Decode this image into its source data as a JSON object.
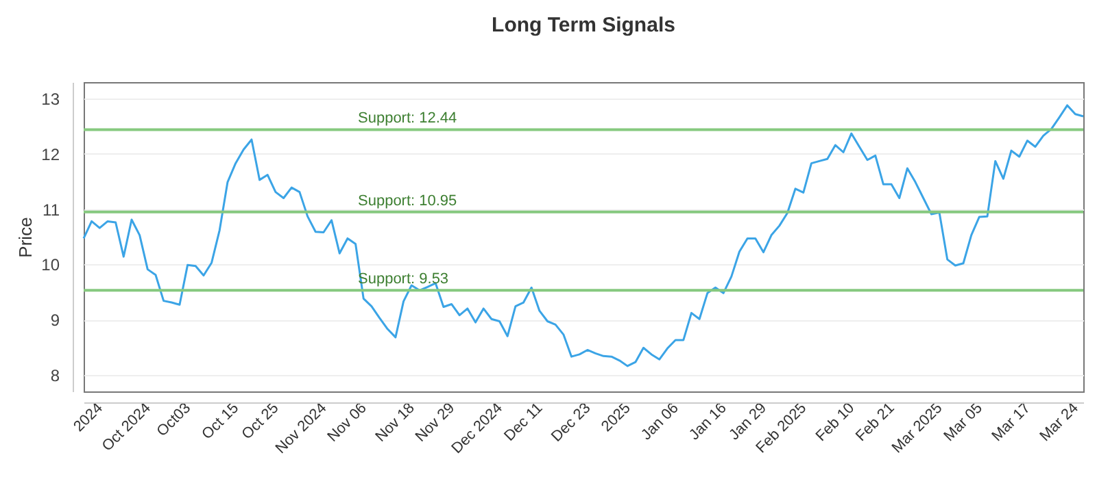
{
  "chart_data": {
    "type": "line",
    "title": "Long Term Signals",
    "ylabel": "Price",
    "categories": [
      null,
      null,
      "2024",
      null,
      null,
      null,
      null,
      null,
      "Oct 2024",
      null,
      null,
      null,
      null,
      "Oct03",
      null,
      null,
      null,
      null,
      null,
      "Oct 15",
      null,
      null,
      null,
      null,
      "Oct 25",
      null,
      null,
      null,
      null,
      null,
      "Nov 2024",
      null,
      null,
      null,
      null,
      "Nov 06",
      null,
      null,
      null,
      null,
      null,
      "Nov 18",
      null,
      null,
      null,
      null,
      "Nov 29",
      null,
      null,
      null,
      null,
      null,
      "Dec 2024",
      null,
      null,
      null,
      null,
      "Dec 11",
      null,
      null,
      null,
      null,
      null,
      "Dec 23",
      null,
      null,
      null,
      null,
      "2025",
      null,
      null,
      null,
      null,
      null,
      "Jan 06",
      null,
      null,
      null,
      null,
      null,
      "Jan 16",
      null,
      null,
      null,
      null,
      "Jan 29",
      null,
      null,
      null,
      null,
      "Feb 2025",
      null,
      null,
      null,
      null,
      null,
      "Feb 10",
      null,
      null,
      null,
      null,
      "Feb 21",
      null,
      null,
      null,
      null,
      null,
      "Mar 2025",
      null,
      null,
      null,
      null,
      "Mar 05",
      null,
      null,
      null,
      null,
      null,
      "Mar 17",
      null,
      null,
      null,
      null,
      null,
      "Mar 24",
      null
    ],
    "series": [
      {
        "color": "#3ba4e6",
        "values": [
          10.47,
          10.78,
          10.66,
          10.78,
          10.76,
          10.14,
          10.81,
          10.53,
          9.91,
          9.81,
          9.34,
          9.31,
          9.27,
          9.99,
          9.97,
          9.8,
          10.03,
          10.62,
          11.49,
          11.83,
          12.08,
          12.26,
          11.53,
          11.62,
          11.31,
          11.2,
          11.39,
          11.31,
          10.87,
          10.59,
          10.58,
          10.8,
          10.2,
          10.47,
          10.37,
          9.38,
          9.24,
          9.03,
          8.83,
          8.68,
          9.33,
          9.62,
          9.53,
          9.59,
          9.66,
          9.23,
          9.28,
          9.08,
          9.2,
          8.95,
          9.2,
          9.01,
          8.97,
          8.7,
          9.24,
          9.31,
          9.58,
          9.16,
          8.97,
          8.91,
          8.73,
          8.33,
          8.37,
          8.45,
          8.39,
          8.34,
          8.33,
          8.26,
          8.16,
          8.23,
          8.49,
          8.37,
          8.28,
          8.48,
          8.63,
          8.63,
          9.12,
          9.01,
          9.48,
          9.58,
          9.48,
          9.78,
          10.23,
          10.47,
          10.47,
          10.22,
          10.53,
          10.7,
          10.93,
          11.37,
          11.3,
          11.83,
          11.87,
          11.91,
          12.16,
          12.03,
          12.37,
          12.13,
          11.89,
          11.97,
          11.45,
          11.45,
          11.2,
          11.74,
          11.49,
          11.2,
          10.91,
          10.94,
          10.09,
          9.98,
          10.02,
          10.53,
          10.86,
          10.87,
          11.87,
          11.55,
          12.06,
          11.95,
          12.24,
          12.13,
          12.33,
          12.45,
          12.66,
          12.88,
          12.72,
          12.68
        ]
      }
    ],
    "ylim": [
      7.7,
      13.3
    ],
    "yticks": [
      8,
      9,
      10,
      11,
      12,
      13
    ],
    "grid": "y",
    "marker": "none",
    "line_style": "solid",
    "ref_lines": [
      {
        "axis": "y",
        "value": 12.44,
        "label": "Support: 12.44",
        "color": "#86c97f"
      },
      {
        "axis": "y",
        "value": 10.95,
        "label": "Support: 10.95",
        "color": "#86c97f"
      },
      {
        "axis": "y",
        "value": 9.53,
        "label": "Support: 9.53",
        "color": "#86c97f"
      }
    ]
  }
}
